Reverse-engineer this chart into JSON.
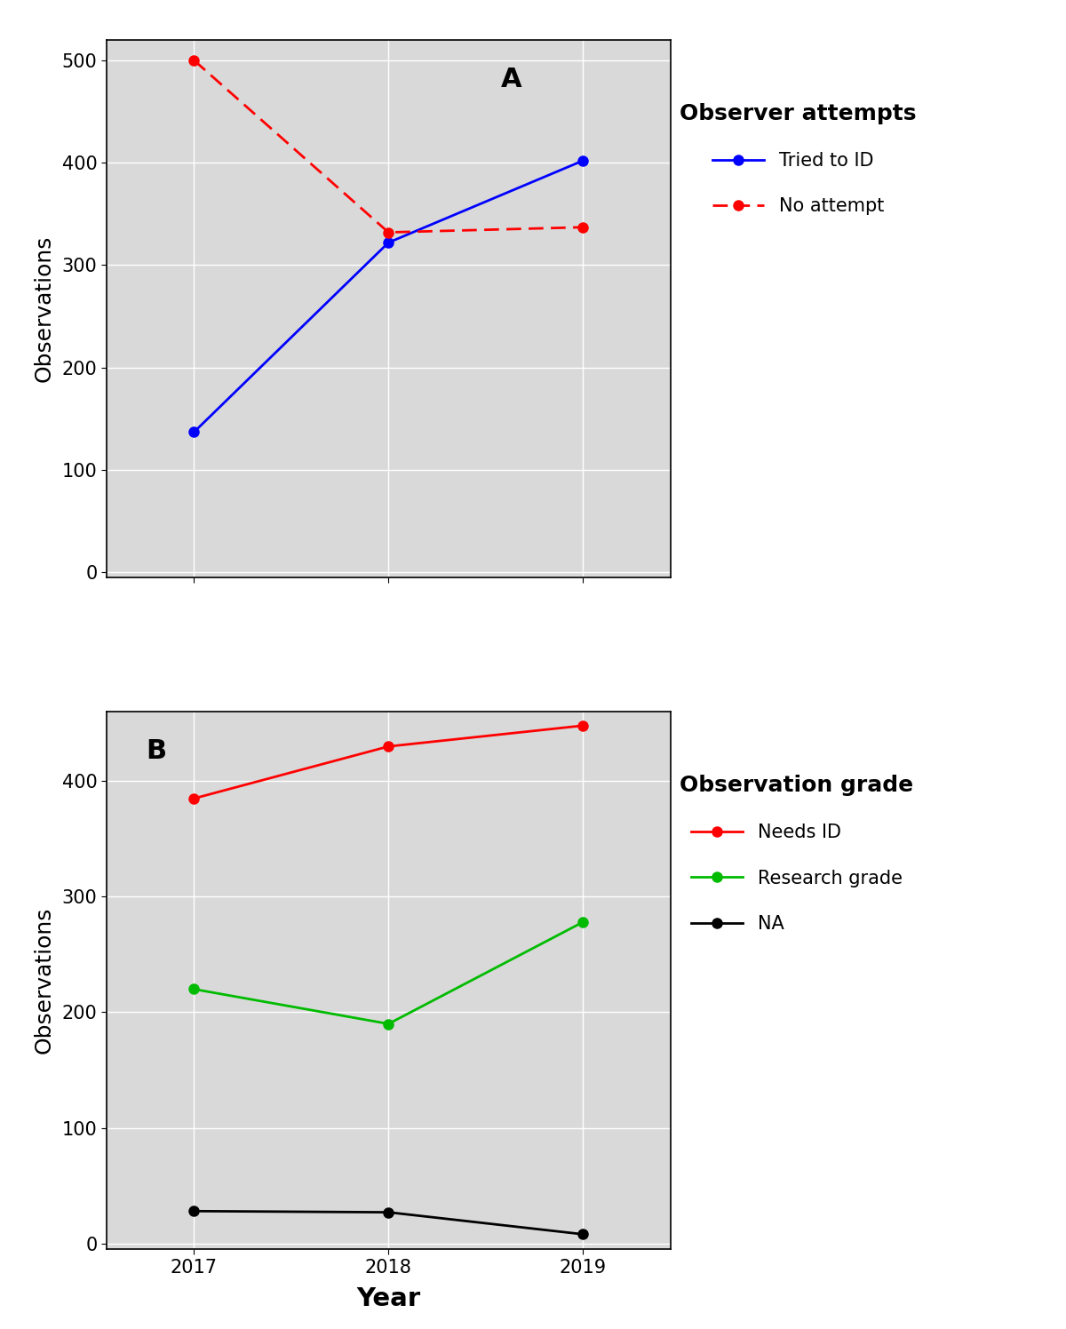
{
  "years": [
    2017,
    2018,
    2019
  ],
  "panel_a": {
    "tried_to_id": [
      137,
      322,
      402
    ],
    "no_attempt": [
      500,
      332,
      337
    ],
    "tried_color": "#0000FF",
    "no_attempt_color": "#FF0000",
    "ylim": [
      -5,
      520
    ],
    "yticks": [
      0,
      100,
      200,
      300,
      400,
      500
    ],
    "label": "A",
    "legend_title": "Observer attempts",
    "legend_entries": [
      "Tried to ID",
      "No attempt"
    ]
  },
  "panel_b": {
    "needs_id": [
      385,
      430,
      448
    ],
    "research_grade": [
      220,
      190,
      278
    ],
    "na": [
      28,
      27,
      8
    ],
    "needs_id_color": "#FF0000",
    "research_grade_color": "#00BB00",
    "na_color": "#000000",
    "ylim": [
      -5,
      460
    ],
    "yticks": [
      0,
      100,
      200,
      300,
      400
    ],
    "label": "B",
    "legend_title": "Observation grade",
    "legend_entries": [
      "Needs ID",
      "Research grade",
      "NA"
    ]
  },
  "xlabel": "Year",
  "ylabel": "Observations",
  "bg_color": "#FFFFFF",
  "plot_bg_color": "#D9D9D9",
  "grid_color": "#FFFFFF",
  "marker_size": 8,
  "line_width": 2.0,
  "label_fontsize": 18,
  "tick_fontsize": 15,
  "legend_title_fontsize": 18,
  "legend_fontsize": 15,
  "panel_label_fontsize": 22
}
